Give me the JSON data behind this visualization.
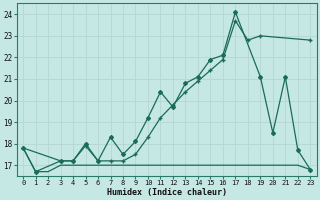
{
  "xlabel": "Humidex (Indice chaleur)",
  "bg_color": "#c5e8e5",
  "grid_color": "#b0d8d5",
  "line_color": "#1a6b5a",
  "xlim": [
    -0.5,
    23.5
  ],
  "ylim": [
    16.5,
    24.5
  ],
  "yticks": [
    17,
    18,
    19,
    20,
    21,
    22,
    23,
    24
  ],
  "xticks": [
    0,
    1,
    2,
    3,
    4,
    5,
    6,
    7,
    8,
    9,
    10,
    11,
    12,
    13,
    14,
    15,
    16,
    17,
    18,
    19,
    20,
    21,
    22,
    23
  ],
  "line1_x": [
    0,
    1,
    3,
    4,
    5,
    6,
    7,
    8,
    9,
    10,
    11,
    12,
    13,
    14,
    15,
    16,
    17,
    19,
    20,
    21,
    22,
    23
  ],
  "line1_y": [
    17.8,
    16.7,
    17.2,
    17.2,
    18.0,
    17.2,
    18.3,
    17.5,
    18.1,
    19.2,
    20.4,
    19.7,
    20.8,
    21.1,
    21.9,
    22.1,
    24.1,
    21.1,
    18.5,
    21.1,
    17.7,
    16.8
  ],
  "line2_x": [
    0,
    3,
    4,
    5,
    6,
    7,
    8,
    9,
    10,
    11,
    12,
    13,
    14,
    15,
    16,
    17,
    18,
    19,
    23
  ],
  "line2_y": [
    17.8,
    17.2,
    17.2,
    17.9,
    17.2,
    17.2,
    17.2,
    17.5,
    18.3,
    19.2,
    19.8,
    20.4,
    20.9,
    21.4,
    21.9,
    23.7,
    22.8,
    23.0,
    22.8
  ],
  "line3_x": [
    0,
    1,
    2,
    3,
    4,
    5,
    6,
    7,
    8,
    9,
    10,
    11,
    12,
    13,
    14,
    15,
    16,
    17,
    18,
    19,
    20,
    21,
    22,
    23
  ],
  "line3_y": [
    17.8,
    16.7,
    16.7,
    17.0,
    17.0,
    17.0,
    17.0,
    17.0,
    17.0,
    17.0,
    17.0,
    17.0,
    17.0,
    17.0,
    17.0,
    17.0,
    17.0,
    17.0,
    17.0,
    17.0,
    17.0,
    17.0,
    17.0,
    16.8
  ]
}
